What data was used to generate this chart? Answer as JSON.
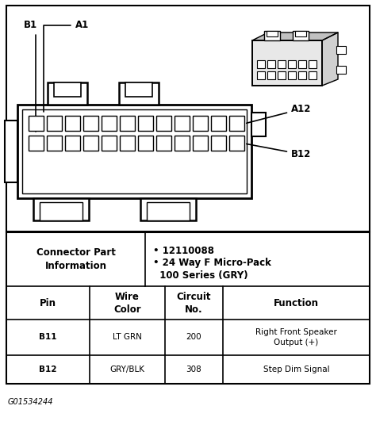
{
  "background_color": "#ffffff",
  "line_color": "#000000",
  "text_color": "#000000",
  "title_label": "G01534244",
  "connector_part_label": "Connector Part\nInformation",
  "part_info_line1": "• 12110088",
  "part_info_line2": "• 24 Way F Micro-Pack\n  100 Series (GRY)",
  "table_headers": [
    "Pin",
    "Wire\nColor",
    "Circuit\nNo.",
    "Function"
  ],
  "table_rows": [
    [
      "B11",
      "LT GRN",
      "200",
      "Right Front Speaker\nOutput (+)"
    ],
    [
      "B12",
      "GRY/BLK",
      "308",
      "Step Dim Signal"
    ]
  ],
  "fig_width": 4.74,
  "fig_height": 5.6,
  "dpi": 100,
  "font_size": 8.5,
  "font_size_small": 7.5,
  "font_size_footer": 7
}
